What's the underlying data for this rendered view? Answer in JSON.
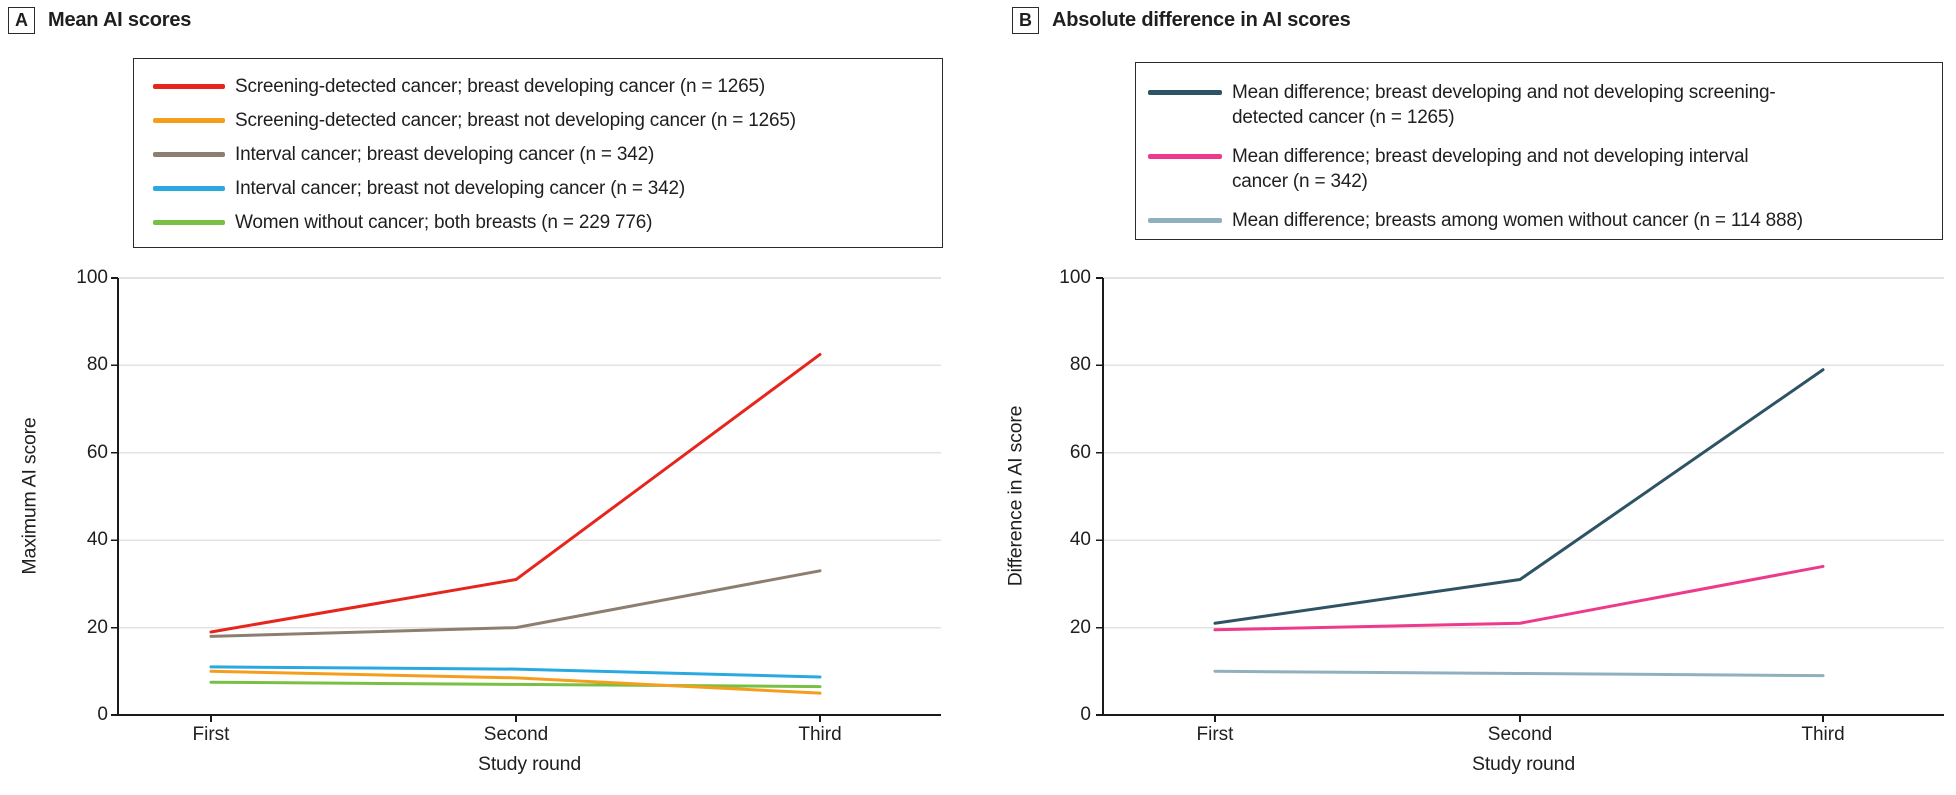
{
  "figure": {
    "panels": [
      {
        "label": "A",
        "title": "Mean AI scores"
      },
      {
        "label": "B",
        "title": "Absolute difference in AI scores"
      }
    ],
    "colors": {
      "axis": "#1a1a1a",
      "grid": "#e3e3e3",
      "text": "#1f1f1f"
    }
  },
  "chart_data": [
    {
      "type": "line",
      "panel": "A",
      "title": "Mean AI scores",
      "xlabel": "Study round",
      "ylabel": "Maximum AI score",
      "categories": [
        "First",
        "Second",
        "Third"
      ],
      "ylim": [
        0,
        100
      ],
      "yticks": [
        0,
        20,
        40,
        60,
        80,
        100
      ],
      "grid": true,
      "legend_position": "top",
      "series": [
        {
          "name": "Screening-detected cancer; breast developing cancer (n = 1265)",
          "label_lines": [
            "Screening-detected cancer; breast developing cancer (n = 1265)"
          ],
          "color": "#e6251c",
          "values": [
            19,
            31,
            82.5
          ]
        },
        {
          "name": "Screening-detected cancer; breast not developing cancer (n = 1265)",
          "label_lines": [
            "Screening-detected cancer; breast not developing cancer (n = 1265)"
          ],
          "color": "#f59e1e",
          "values": [
            10,
            8.5,
            5
          ]
        },
        {
          "name": "Interval cancer; breast developing cancer (n = 342)",
          "label_lines": [
            "Interval cancer; breast developing cancer (n = 342)"
          ],
          "color": "#8d7f6f",
          "values": [
            18,
            20,
            33
          ]
        },
        {
          "name": "Interval cancer; breast not developing cancer (n = 342)",
          "label_lines": [
            "Interval cancer; breast not developing cancer (n = 342)"
          ],
          "color": "#2aa9e0",
          "values": [
            11,
            10.5,
            8.7
          ]
        },
        {
          "name": "Women without cancer; both breasts (n = 229 776)",
          "label_lines": [
            "Women without cancer; both breasts (n = 229 776)"
          ],
          "color": "#78c043",
          "values": [
            7.5,
            7,
            6.5
          ]
        }
      ]
    },
    {
      "type": "line",
      "panel": "B",
      "title": "Absolute difference in AI scores",
      "xlabel": "Study round",
      "ylabel": "Difference in AI score",
      "categories": [
        "First",
        "Second",
        "Third"
      ],
      "ylim": [
        0,
        100
      ],
      "yticks": [
        0,
        20,
        40,
        60,
        80,
        100
      ],
      "grid": true,
      "legend_position": "top",
      "series": [
        {
          "name": "Mean difference; breast developing and not developing screening-detected cancer (n = 1265)",
          "label_lines": [
            "Mean difference; breast developing and not developing screening-",
            "detected cancer (n = 1265)"
          ],
          "color": "#2e5365",
          "values": [
            21,
            31,
            79
          ]
        },
        {
          "name": "Mean difference; breast developing and not developing interval cancer (n = 342)",
          "label_lines": [
            "Mean difference; breast developing and not developing interval",
            "cancer (n = 342)"
          ],
          "color": "#ee3a8c",
          "values": [
            19.5,
            21,
            34
          ]
        },
        {
          "name": "Mean difference; breasts among women without cancer (n = 114 888)",
          "label_lines": [
            "Mean difference; breasts among women without cancer (n = 114 888)"
          ],
          "color": "#90b0bd",
          "values": [
            10,
            9.5,
            9
          ]
        }
      ]
    }
  ]
}
